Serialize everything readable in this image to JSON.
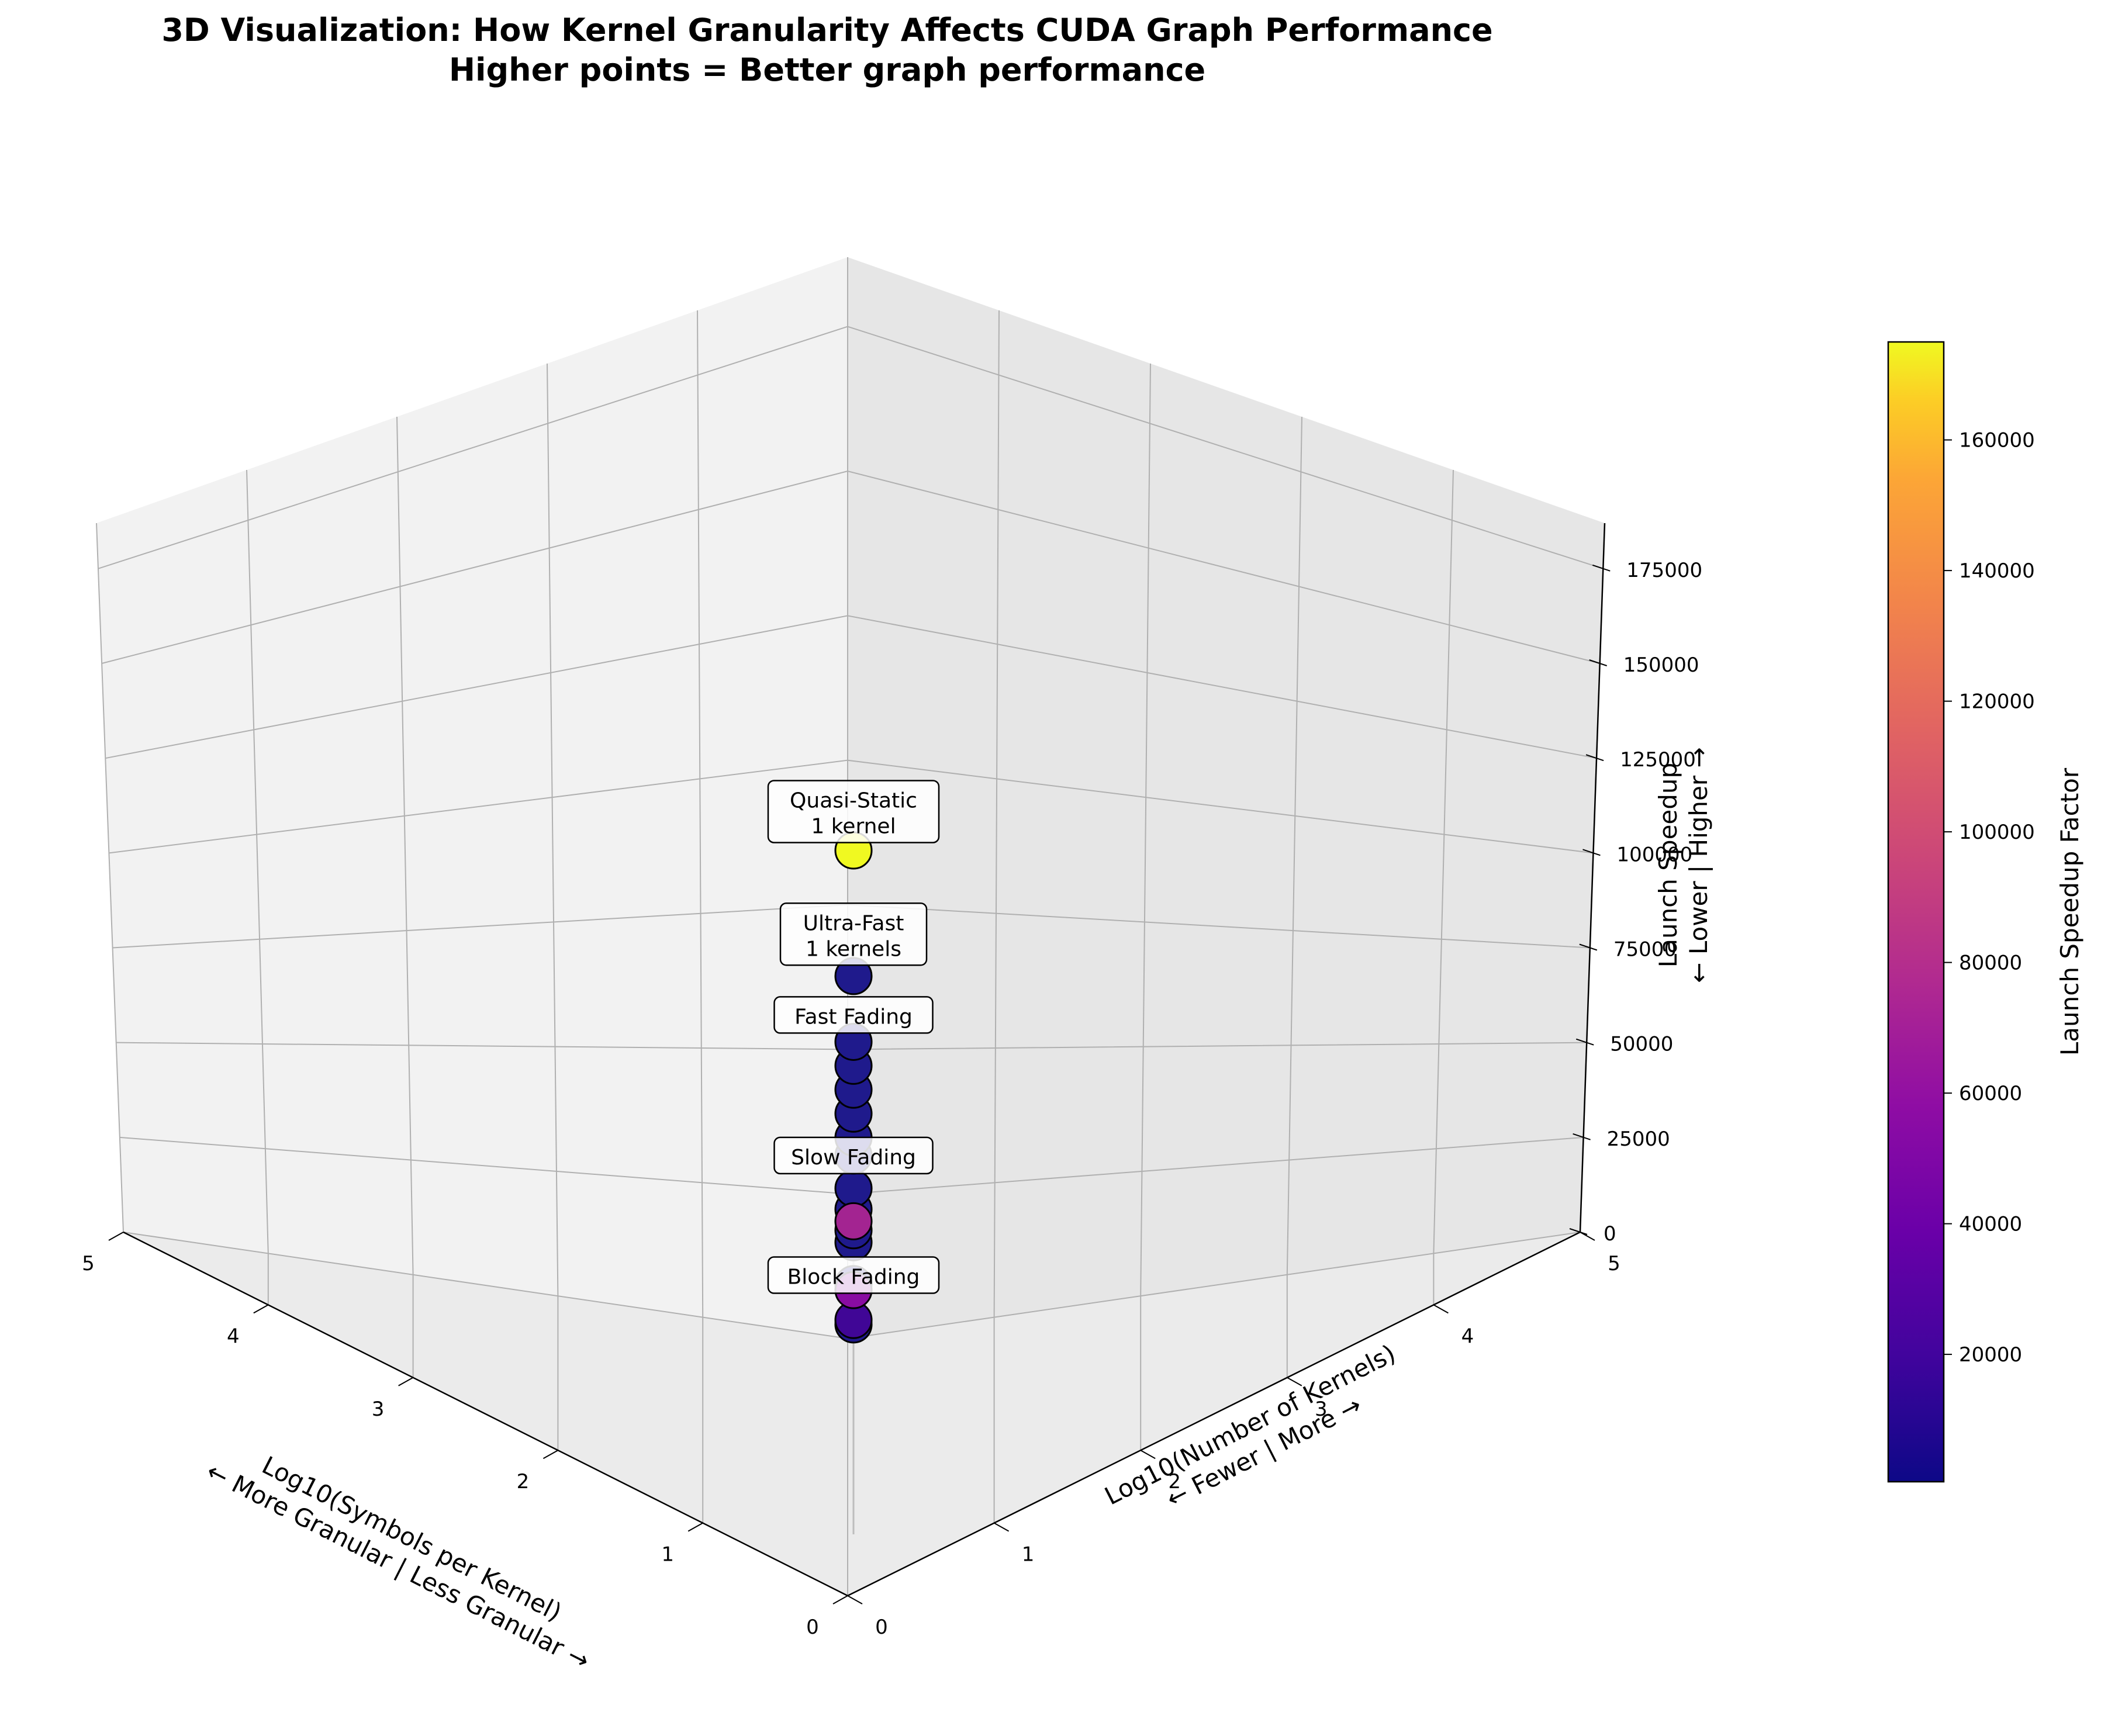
{
  "chart_data": {
    "type": "scatter",
    "title_lines": [
      "3D Visualization: How Kernel Granularity Affects CUDA Graph Performance",
      "Higher points = Better graph performance"
    ],
    "xlabel_lines": [
      "Log10(Symbols per Kernel)",
      "← More Granular | Less Granular →"
    ],
    "ylabel_lines": [
      "Log10(Number of Kernels)",
      "← Fewer | More →"
    ],
    "zlabel_lines": [
      "Launch Speedup",
      "← Lower | Higher →"
    ],
    "xlim": [
      0,
      5
    ],
    "ylim": [
      0,
      5
    ],
    "zlim": [
      0,
      187000
    ],
    "x_ticks": [
      "0",
      "1",
      "2",
      "3",
      "4",
      "5"
    ],
    "y_ticks": [
      "0",
      "1",
      "2",
      "3",
      "4",
      "5"
    ],
    "z_ticks": [
      "0",
      "25000",
      "50000",
      "75000",
      "100000",
      "125000",
      "150000",
      "175000"
    ],
    "colorbar": {
      "label": "Launch Speedup Factor",
      "colormap": "plasma",
      "range": [
        500,
        175000
      ],
      "ticks": [
        "20000",
        "40000",
        "60000",
        "80000",
        "100000",
        "120000",
        "140000",
        "160000"
      ]
    },
    "points": [
      {
        "x": 0,
        "y": 0,
        "z": 172000
      },
      {
        "x": 0,
        "y": 0,
        "z": 130000
      },
      {
        "x": 0,
        "y": 0,
        "z": 108000
      },
      {
        "x": 0,
        "y": 0,
        "z": 100000
      },
      {
        "x": 0,
        "y": 0,
        "z": 92000
      },
      {
        "x": 0,
        "y": 0,
        "z": 84000
      },
      {
        "x": 0,
        "y": 0,
        "z": 76000
      },
      {
        "x": 0,
        "y": 0,
        "z": 70000
      },
      {
        "x": 0,
        "y": 0,
        "z": 59000
      },
      {
        "x": 0,
        "y": 0,
        "z": 52000
      },
      {
        "x": 0,
        "y": 0,
        "z": 45000
      },
      {
        "x": 0,
        "y": 0,
        "z": 41000
      },
      {
        "x": 0,
        "y": 0,
        "z": 27000
      },
      {
        "x": 0,
        "y": 0,
        "z": 13500
      }
    ],
    "highlight_points": [
      {
        "x": 0,
        "y": 0,
        "z": 15000,
        "c": 20000
      },
      {
        "x": 0,
        "y": 0,
        "z": 48000,
        "c": 65000
      },
      {
        "x": 0,
        "y": 0,
        "z": 25000,
        "c": 50000
      }
    ],
    "annotations": [
      {
        "lines": [
          "Quasi-Static",
          "1 kernel"
        ],
        "z": 185000
      },
      {
        "lines": [
          "Ultra-Fast",
          "1 kernels"
        ],
        "z": 144000
      },
      {
        "lines": [
          "Fast Fading"
        ],
        "z": 117000
      },
      {
        "lines": [
          "Slow Fading"
        ],
        "z": 70000
      },
      {
        "lines": [
          "Block Fading"
        ],
        "z": 30000
      }
    ]
  }
}
